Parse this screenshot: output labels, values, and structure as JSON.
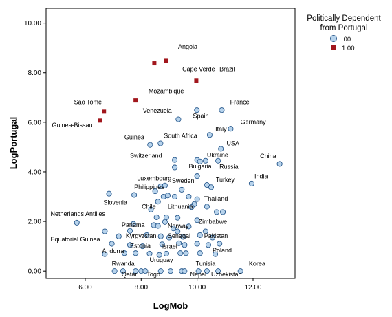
{
  "chart_data": {
    "type": "scatter",
    "xlabel": "LogMob",
    "ylabel": "LogPortugal",
    "xlim": [
      4.6,
      13.5
    ],
    "ylim": [
      -0.3,
      10.6
    ],
    "xticks": [
      "6.00",
      "8.00",
      "10.00",
      "12.00"
    ],
    "yticks": [
      "0.00",
      "2.00",
      "4.00",
      "6.00",
      "8.00",
      "10.00"
    ],
    "legend": {
      "title_line1": "Politically Dependent",
      "title_line2": "from Portugal",
      "items": [
        ".00",
        "1.00"
      ],
      "placement": "top-right"
    },
    "colors": {
      "not_dependent_fill": "#b7d3ec",
      "not_dependent_stroke": "#27588c",
      "dependent": "#a1161c"
    },
    "series": [
      {
        "name": ".00",
        "marker": "circle",
        "points": [
          [
            9.99,
            6.49
          ],
          [
            10.88,
            6.49
          ],
          [
            9.33,
            6.12
          ],
          [
            11.2,
            5.74
          ],
          [
            10.45,
            5.49
          ],
          [
            10.85,
            4.93
          ],
          [
            8.32,
            5.09
          ],
          [
            8.69,
            5.15
          ],
          [
            9.2,
            4.48
          ],
          [
            9.2,
            4.18
          ],
          [
            10.0,
            4.48
          ],
          [
            10.3,
            4.45
          ],
          [
            10.1,
            4.42
          ],
          [
            10.75,
            4.45
          ],
          [
            12.95,
            4.32
          ],
          [
            10.0,
            3.83
          ],
          [
            11.95,
            3.53
          ],
          [
            10.35,
            3.47
          ],
          [
            10.5,
            3.38
          ],
          [
            6.85,
            3.12
          ],
          [
            7.75,
            3.07
          ],
          [
            8.5,
            3.22
          ],
          [
            8.7,
            3.42
          ],
          [
            8.85,
            3.45
          ],
          [
            9.45,
            3.28
          ],
          [
            8.8,
            3.0
          ],
          [
            8.95,
            3.05
          ],
          [
            9.2,
            3.0
          ],
          [
            9.7,
            3.0
          ],
          [
            10.0,
            2.9
          ],
          [
            8.6,
            2.8
          ],
          [
            9.9,
            2.7
          ],
          [
            10.35,
            2.6
          ],
          [
            8.35,
            2.48
          ],
          [
            9.8,
            2.58
          ],
          [
            10.7,
            2.38
          ],
          [
            10.92,
            2.38
          ],
          [
            5.7,
            1.95
          ],
          [
            8.55,
            2.17
          ],
          [
            8.9,
            2.17
          ],
          [
            9.3,
            2.15
          ],
          [
            10.0,
            2.05
          ],
          [
            7.72,
            1.9
          ],
          [
            8.45,
            1.85
          ],
          [
            8.6,
            1.82
          ],
          [
            8.85,
            1.98
          ],
          [
            9.15,
            1.72
          ],
          [
            9.7,
            1.8
          ],
          [
            6.7,
            1.6
          ],
          [
            7.6,
            1.62
          ],
          [
            9.3,
            1.6
          ],
          [
            10.3,
            1.6
          ],
          [
            7.2,
            1.4
          ],
          [
            8.2,
            1.45
          ],
          [
            8.7,
            1.4
          ],
          [
            9.0,
            1.35
          ],
          [
            9.5,
            1.38
          ],
          [
            10.1,
            1.45
          ],
          [
            10.55,
            1.35
          ],
          [
            6.95,
            1.1
          ],
          [
            7.6,
            1.05
          ],
          [
            8.05,
            1.0
          ],
          [
            8.75,
            1.08
          ],
          [
            9.35,
            1.12
          ],
          [
            9.55,
            1.05
          ],
          [
            10.0,
            1.1
          ],
          [
            10.4,
            1.05
          ],
          [
            10.8,
            1.1
          ],
          [
            6.7,
            0.68
          ],
          [
            7.4,
            0.72
          ],
          [
            7.8,
            0.72
          ],
          [
            8.3,
            0.7
          ],
          [
            8.65,
            0.65
          ],
          [
            8.9,
            0.7
          ],
          [
            9.4,
            0.72
          ],
          [
            9.6,
            0.72
          ],
          [
            10.1,
            0.72
          ],
          [
            10.65,
            0.68
          ],
          [
            7.05,
            0.0
          ],
          [
            7.35,
            0.0
          ],
          [
            7.8,
            0.0
          ],
          [
            8.0,
            0.0
          ],
          [
            8.15,
            0.0
          ],
          [
            8.7,
            0.0
          ],
          [
            9.05,
            0.0
          ],
          [
            9.45,
            0.0
          ],
          [
            9.55,
            0.0
          ],
          [
            10.05,
            0.0
          ],
          [
            10.35,
            0.0
          ],
          [
            10.75,
            0.0
          ],
          [
            11.55,
            0.0
          ]
        ]
      },
      {
        "name": "1.00",
        "marker": "square",
        "points": [
          [
            8.47,
            8.38
          ],
          [
            8.88,
            8.48
          ],
          [
            9.97,
            7.68
          ],
          [
            7.8,
            6.88
          ],
          [
            6.67,
            6.43
          ],
          [
            6.52,
            6.07
          ]
        ]
      }
    ],
    "annotations": [
      {
        "text": "Angola",
        "x": 9.32,
        "y": 8.96
      },
      {
        "text": "Cape Verde",
        "x": 9.47,
        "y": 8.06
      },
      {
        "text": "Brazil",
        "x": 10.8,
        "y": 8.06
      },
      {
        "text": "Mozambique",
        "x": 8.26,
        "y": 7.17
      },
      {
        "text": "Sao Tome",
        "x": 5.6,
        "y": 6.73
      },
      {
        "text": "Guinea-Bissau",
        "x": 4.81,
        "y": 5.8
      },
      {
        "text": "France",
        "x": 11.18,
        "y": 6.73
      },
      {
        "text": "Venezuela",
        "x": 8.06,
        "y": 6.38
      },
      {
        "text": "Spain",
        "x": 9.85,
        "y": 6.17
      },
      {
        "text": "Germany",
        "x": 11.55,
        "y": 5.93
      },
      {
        "text": "Italy",
        "x": 10.65,
        "y": 5.65
      },
      {
        "text": "Guinea",
        "x": 7.4,
        "y": 5.31
      },
      {
        "text": "South Africa",
        "x": 8.81,
        "y": 5.37
      },
      {
        "text": "USA",
        "x": 11.05,
        "y": 5.07
      },
      {
        "text": "Switzerland",
        "x": 7.6,
        "y": 4.57
      },
      {
        "text": "Ukraine",
        "x": 10.35,
        "y": 4.6
      },
      {
        "text": "China",
        "x": 12.25,
        "y": 4.55
      },
      {
        "text": "Bulgaria",
        "x": 9.7,
        "y": 4.14
      },
      {
        "text": "Russia",
        "x": 10.8,
        "y": 4.12
      },
      {
        "text": "India",
        "x": 12.05,
        "y": 3.74
      },
      {
        "text": "Luxembourg",
        "x": 7.85,
        "y": 3.65
      },
      {
        "text": "Sweden",
        "x": 9.1,
        "y": 3.56
      },
      {
        "text": "Turkey",
        "x": 10.67,
        "y": 3.6
      },
      {
        "text": "Philippines",
        "x": 7.75,
        "y": 3.3
      },
      {
        "text": "Thailand",
        "x": 10.25,
        "y": 2.83
      },
      {
        "text": "Slovenia",
        "x": 6.65,
        "y": 2.68
      },
      {
        "text": "Chile",
        "x": 8.02,
        "y": 2.52
      },
      {
        "text": "Lithuania",
        "x": 8.95,
        "y": 2.52
      },
      {
        "text": "Netherlands Antilles",
        "x": 4.76,
        "y": 2.22
      },
      {
        "text": "Zimbabwe",
        "x": 10.05,
        "y": 1.9
      },
      {
        "text": "Panama",
        "x": 7.3,
        "y": 1.78
      },
      {
        "text": "Norway",
        "x": 8.95,
        "y": 1.74
      },
      {
        "text": "Senegal",
        "x": 8.95,
        "y": 1.34
      },
      {
        "text": "Pakistan",
        "x": 10.25,
        "y": 1.34
      },
      {
        "text": "Kyrgyzstan",
        "x": 7.45,
        "y": 1.34
      },
      {
        "text": "Equatorial Guinea",
        "x": 4.76,
        "y": 1.2
      },
      {
        "text": "Estonia",
        "x": 7.6,
        "y": 0.94
      },
      {
        "text": "Israel",
        "x": 8.75,
        "y": 0.9
      },
      {
        "text": "Poland",
        "x": 10.55,
        "y": 0.76
      },
      {
        "text": "Andorra",
        "x": 6.6,
        "y": 0.73
      },
      {
        "text": "Uruguay",
        "x": 8.3,
        "y": 0.37
      },
      {
        "text": "Rwanda",
        "x": 6.95,
        "y": 0.22
      },
      {
        "text": "Tunisia",
        "x": 9.95,
        "y": 0.22
      },
      {
        "text": "Korea",
        "x": 11.85,
        "y": 0.22
      },
      {
        "text": "Qatar",
        "x": 7.3,
        "y": -0.22
      },
      {
        "text": "Togo",
        "x": 8.2,
        "y": -0.22
      },
      {
        "text": "Nepal",
        "x": 9.75,
        "y": -0.22
      },
      {
        "text": "Uzbekistan",
        "x": 10.5,
        "y": -0.22
      }
    ]
  }
}
